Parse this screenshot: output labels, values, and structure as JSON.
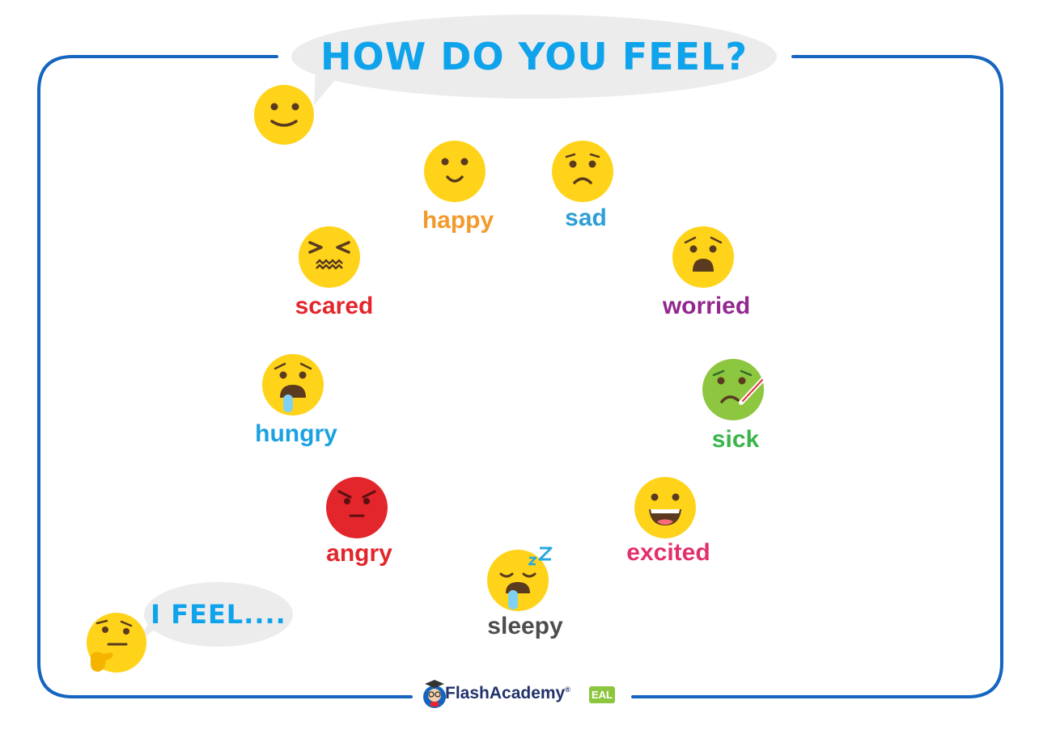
{
  "title": "HOW DO YOU FEEL?",
  "prompt": "I FEEL....",
  "emotions": [
    {
      "label": "happy",
      "color": "#f39a2c"
    },
    {
      "label": "sad",
      "color": "#2d9fd6"
    },
    {
      "label": "scared",
      "color": "#e3262b"
    },
    {
      "label": "worried",
      "color": "#92278f"
    },
    {
      "label": "hungry",
      "color": "#1ba1e2"
    },
    {
      "label": "sick",
      "color": "#39b54a"
    },
    {
      "label": "angry",
      "color": "#e3262b"
    },
    {
      "label": "excited",
      "color": "#e2306c"
    },
    {
      "label": "sleepy",
      "color": "#4d4d4d"
    }
  ],
  "logo": {
    "name": "FlashAcademy",
    "registered": "®",
    "badge": "EAL"
  },
  "colors": {
    "frame": "#1565c0",
    "title": "#0fa3ec",
    "bubble": "#ececec",
    "emoji_yellow": "#ffd31a",
    "angry_red": "#e2262b",
    "sick_green": "#8dc63f"
  }
}
